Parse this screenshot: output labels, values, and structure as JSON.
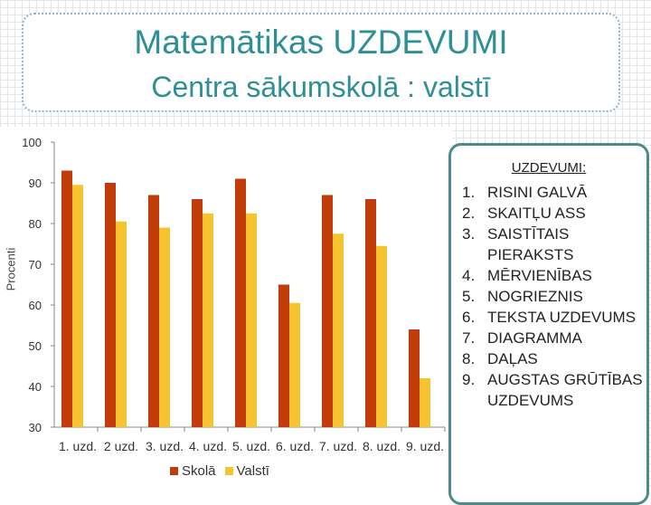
{
  "title": "Matemātikas UZDEVUMI",
  "subtitle": "Centra sākumskolā : valstī",
  "colors": {
    "title": "#2e8f96",
    "skola": "#c23b0a",
    "valsti": "#f5c431"
  },
  "chart_data": {
    "type": "bar",
    "categories": [
      "1. uzd.",
      "2 uzd.",
      "3. uzd.",
      "4. uzd.",
      "5. uzd.",
      "6. uzd.",
      "7. uzd.",
      "8. uzd.",
      "9. uzd."
    ],
    "series": [
      {
        "name": "Skolā",
        "values": [
          93,
          90,
          87,
          86,
          91,
          65,
          87,
          86,
          54
        ]
      },
      {
        "name": "Valstī",
        "values": [
          89.5,
          80.5,
          79,
          82.5,
          82.5,
          60.5,
          77.5,
          74.5,
          42
        ]
      }
    ],
    "ylabel": "Procenti",
    "ylim": [
      30,
      100
    ],
    "yticks": [
      30,
      40,
      50,
      60,
      70,
      80,
      90,
      100
    ],
    "legend_position": "bottom",
    "grid": false
  },
  "panel": {
    "title": "UZDEVUMI:",
    "items": [
      {
        "num": "1.",
        "text": "RISINI GALVĀ"
      },
      {
        "num": "2.",
        "text": "SKAITĻU ASS"
      },
      {
        "num": "3.",
        "text": "SAISTĪTAIS PIERAKSTS"
      },
      {
        "num": "4.",
        "text": "MĒRVIENĪBAS"
      },
      {
        "num": "5.",
        "text": "NOGRIEZNIS"
      },
      {
        "num": "6.",
        "text": "TEKSTA UZDEVUMS"
      },
      {
        "num": "7.",
        "text": "DIAGRAMMA"
      },
      {
        "num": "8.",
        "text": "DAĻAS"
      },
      {
        "num": "9.",
        "text": "AUGSTAS GRŪTĪBAS UZDEVUMS"
      }
    ]
  }
}
